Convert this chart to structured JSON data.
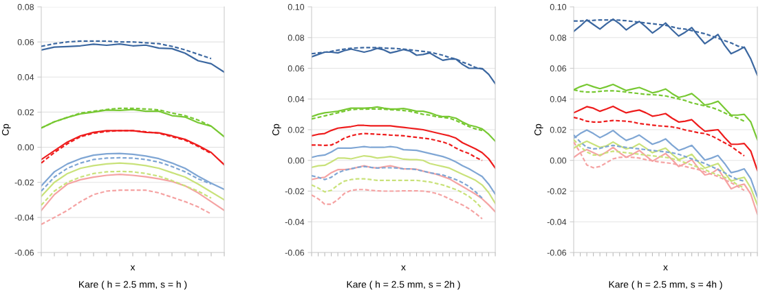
{
  "chart_data": [
    {
      "type": "line",
      "title": "Kare ( h = 2.5 mm, s = h )",
      "xlabel": "x",
      "ylabel": "Cp",
      "grid": "y",
      "categories": [
        null,
        null,
        null,
        null,
        null,
        null,
        null,
        null,
        null,
        null,
        null,
        null,
        null,
        null,
        null
      ],
      "ylim": [
        -0.06,
        0.08
      ],
      "yticks": [
        {
          "value": -0.06,
          "label": "-0.06"
        },
        {
          "value": -0.04,
          "label": "-0.04"
        },
        {
          "value": -0.02,
          "label": "-0.02"
        },
        {
          "value": 0,
          "label": "0.00"
        },
        {
          "value": 0.02,
          "label": "0.02"
        },
        {
          "value": 0.04,
          "label": "0.04"
        },
        {
          "value": 0.06,
          "label": "0.06"
        },
        {
          "value": 0.08,
          "label": "0.08"
        }
      ],
      "series": [
        {
          "color": "#3b67a0",
          "line_style": "solid",
          "values": [
            0.0554,
            0.0571,
            0.0574,
            0.0578,
            0.0587,
            0.0581,
            0.0588,
            0.0578,
            0.0582,
            0.0565,
            0.0562,
            0.0536,
            0.0493,
            0.0476,
            0.0428
          ]
        },
        {
          "color": "#3b67a0",
          "line_style": "dashed",
          "values": [
            0.0575,
            0.059,
            0.06,
            0.0605,
            0.0605,
            0.0605,
            0.06,
            0.06,
            0.0595,
            0.059,
            0.0575,
            0.0555,
            0.053,
            0.0505,
            null
          ]
        },
        {
          "color": "#77c832",
          "line_style": "solid",
          "values": [
            0.011,
            0.0145,
            0.017,
            0.019,
            0.02,
            0.0212,
            0.021,
            0.0215,
            0.0205,
            0.0205,
            0.018,
            0.0172,
            0.014,
            0.012,
            0.006
          ]
        },
        {
          "color": "#77c832",
          "line_style": "dashed",
          "values": [
            0.011,
            0.0145,
            0.017,
            0.0195,
            0.0205,
            0.0215,
            0.0222,
            0.0222,
            0.0218,
            0.0213,
            0.0195,
            0.018,
            0.0155,
            0.012,
            null
          ]
        },
        {
          "color": "#ee1c1c",
          "line_style": "solid",
          "values": [
            -0.007,
            -0.002,
            0.003,
            0.0065,
            0.0085,
            0.0095,
            0.0095,
            0.0095,
            0.0085,
            0.0082,
            0.0065,
            0.0045,
            0.001,
            -0.003,
            -0.01
          ]
        },
        {
          "color": "#ee1c1c",
          "line_style": "dashed",
          "values": [
            -0.009,
            -0.003,
            0.002,
            0.006,
            0.008,
            0.009,
            0.0095,
            0.0095,
            0.0088,
            0.008,
            0.006,
            0.004,
            0.0005,
            -0.0035,
            null
          ]
        },
        {
          "color": "#7fa6d4",
          "line_style": "solid",
          "values": [
            -0.022,
            -0.014,
            -0.0095,
            -0.0065,
            -0.0045,
            -0.0037,
            -0.0035,
            -0.004,
            -0.005,
            -0.0065,
            -0.009,
            -0.012,
            -0.0165,
            -0.0205,
            -0.024
          ]
        },
        {
          "color": "#7fa6d4",
          "line_style": "dashed",
          "values": [
            -0.025,
            -0.017,
            -0.012,
            -0.009,
            -0.007,
            -0.0062,
            -0.006,
            -0.0062,
            -0.007,
            -0.0085,
            -0.011,
            -0.014,
            -0.018,
            -0.021,
            null
          ]
        },
        {
          "color": "#c9e27a",
          "line_style": "solid",
          "values": [
            -0.028,
            -0.02,
            -0.015,
            -0.012,
            -0.0105,
            -0.0095,
            -0.009,
            -0.0095,
            -0.0105,
            -0.012,
            -0.0145,
            -0.017,
            -0.021,
            -0.0255,
            -0.03
          ]
        },
        {
          "color": "#c9e27a",
          "line_style": "dashed",
          "values": [
            -0.033,
            -0.025,
            -0.02,
            -0.017,
            -0.015,
            -0.014,
            -0.0138,
            -0.014,
            -0.015,
            -0.0165,
            -0.019,
            -0.022,
            -0.025,
            -0.029,
            null
          ]
        },
        {
          "color": "#f5a3a3",
          "line_style": "solid",
          "values": [
            -0.036,
            -0.027,
            -0.021,
            -0.0185,
            -0.017,
            -0.016,
            -0.0155,
            -0.016,
            -0.0168,
            -0.018,
            -0.0195,
            -0.022,
            -0.026,
            -0.031,
            -0.036
          ]
        },
        {
          "color": "#f5a3a3",
          "line_style": "dashed",
          "values": [
            -0.044,
            -0.04,
            -0.036,
            -0.031,
            -0.027,
            -0.025,
            -0.0245,
            -0.0245,
            -0.0245,
            -0.026,
            -0.0285,
            -0.031,
            -0.034,
            -0.038,
            null
          ]
        }
      ]
    },
    {
      "type": "line",
      "title": "Kare ( h = 2.5 mm, s = 2h )",
      "xlabel": "x",
      "ylabel": "Cp",
      "grid": "y",
      "categories": [
        null,
        null,
        null,
        null,
        null,
        null,
        null,
        null,
        null,
        null,
        null,
        null,
        null,
        null,
        null,
        null,
        null,
        null,
        null,
        null,
        null,
        null,
        null,
        null,
        null,
        null,
        null,
        null,
        null
      ],
      "ylim": [
        -0.06,
        0.1
      ],
      "yticks": [
        {
          "value": -0.06,
          "label": "-0.06"
        },
        {
          "value": -0.04,
          "label": "-0.04"
        },
        {
          "value": -0.02,
          "label": "-0.02"
        },
        {
          "value": 0,
          "label": "0.00"
        },
        {
          "value": 0.02,
          "label": "0.02"
        },
        {
          "value": 0.04,
          "label": "0.04"
        },
        {
          "value": 0.06,
          "label": "0.06"
        },
        {
          "value": 0.08,
          "label": "0.08"
        },
        {
          "value": 0.1,
          "label": "0.10"
        }
      ],
      "series": [
        {
          "color": "#3b67a0",
          "line_style": "solid",
          "values": [
            0.0675,
            0.069,
            0.0705,
            0.0705,
            0.07,
            0.0715,
            0.0725,
            0.0715,
            0.0705,
            0.0715,
            0.073,
            0.072,
            0.07,
            0.071,
            0.0722,
            0.0712,
            0.0685,
            0.069,
            0.07,
            0.0675,
            0.0652,
            0.066,
            0.066,
            0.0625,
            0.06,
            0.06,
            0.0598,
            0.056,
            0.05
          ]
        },
        {
          "color": "#3b67a0",
          "line_style": "dashed",
          "values": [
            0.0695,
            0.07,
            0.0705,
            0.071,
            0.0718,
            0.0725,
            0.073,
            0.0733,
            0.0735,
            0.0735,
            0.0735,
            0.0732,
            0.073,
            0.0728,
            0.0725,
            0.072,
            0.0715,
            0.071,
            0.0705,
            0.0695,
            0.0685,
            0.067,
            0.066,
            0.064,
            0.0625,
            0.0605,
            0.0595,
            null,
            null
          ]
        },
        {
          "color": "#77c832",
          "line_style": "solid",
          "values": [
            0.0285,
            0.03,
            0.031,
            0.0315,
            0.032,
            0.033,
            0.034,
            0.034,
            0.034,
            0.0342,
            0.0348,
            0.034,
            0.0335,
            0.0335,
            0.0338,
            0.033,
            0.032,
            0.032,
            0.031,
            0.0295,
            0.0285,
            0.0285,
            0.0275,
            0.025,
            0.023,
            0.022,
            0.0205,
            0.017,
            0.0125
          ]
        },
        {
          "color": "#77c832",
          "line_style": "dashed",
          "values": [
            0.027,
            0.028,
            0.029,
            0.03,
            0.031,
            0.032,
            0.033,
            0.0333,
            0.0333,
            0.0335,
            0.0335,
            0.0333,
            0.033,
            0.0328,
            0.0325,
            0.032,
            0.031,
            0.03,
            0.0295,
            0.0285,
            0.028,
            0.0275,
            0.026,
            0.024,
            0.022,
            0.0205,
            0.0195,
            null,
            null
          ]
        },
        {
          "color": "#ee1c1c",
          "line_style": "solid",
          "values": [
            0.016,
            0.017,
            0.0175,
            0.0195,
            0.021,
            0.0215,
            0.022,
            0.0228,
            0.0228,
            0.0225,
            0.0225,
            0.0225,
            0.0225,
            0.022,
            0.0215,
            0.021,
            0.0205,
            0.02,
            0.019,
            0.018,
            0.017,
            0.016,
            0.0145,
            0.0115,
            0.0095,
            0.0075,
            0.005,
            0.001,
            -0.005
          ]
        },
        {
          "color": "#ee1c1c",
          "line_style": "dashed",
          "values": [
            0.01,
            0.01,
            0.0098,
            0.01,
            0.012,
            0.0145,
            0.016,
            0.017,
            0.0175,
            0.0173,
            0.017,
            0.0168,
            0.0165,
            0.0163,
            0.016,
            0.0155,
            0.015,
            0.0145,
            0.014,
            0.013,
            0.012,
            0.0105,
            0.008,
            0.006,
            0.0045,
            0.002,
            0.0,
            null,
            null
          ]
        },
        {
          "color": "#7fa6d4",
          "line_style": "solid",
          "values": [
            0.002,
            0.003,
            0.0035,
            0.0055,
            0.008,
            0.008,
            0.008,
            0.0085,
            0.009,
            0.0085,
            0.0085,
            0.0085,
            0.009,
            0.0085,
            0.007,
            0.0068,
            0.0065,
            0.0055,
            0.0045,
            0.0035,
            0.0025,
            0.001,
            -0.001,
            -0.0035,
            -0.0055,
            -0.008,
            -0.0105,
            -0.0155,
            -0.022
          ]
        },
        {
          "color": "#7fa6d4",
          "line_style": "dashed",
          "values": [
            -0.01,
            -0.011,
            -0.0125,
            -0.011,
            -0.008,
            -0.0065,
            -0.0055,
            -0.0045,
            -0.004,
            -0.0045,
            -0.005,
            -0.0048,
            -0.0048,
            -0.005,
            -0.0055,
            -0.0055,
            -0.006,
            -0.007,
            -0.008,
            -0.0088,
            -0.0095,
            -0.011,
            -0.0125,
            -0.0145,
            -0.017,
            -0.0205,
            -0.0245,
            null,
            null
          ]
        },
        {
          "color": "#c9e27a",
          "line_style": "solid",
          "values": [
            -0.0045,
            -0.0035,
            -0.0032,
            -0.001,
            0.0015,
            0.0015,
            0.001,
            0.002,
            0.003,
            0.0025,
            0.0015,
            0.002,
            0.0025,
            0.0018,
            0.0008,
            0.0005,
            0.0005,
            0.0,
            -0.002,
            -0.003,
            -0.004,
            -0.005,
            -0.007,
            -0.009,
            -0.011,
            -0.013,
            -0.016,
            -0.021,
            -0.028
          ]
        },
        {
          "color": "#c9e27a",
          "line_style": "dashed",
          "values": [
            -0.016,
            -0.018,
            -0.0205,
            -0.0195,
            -0.016,
            -0.0135,
            -0.0125,
            -0.012,
            -0.012,
            -0.0125,
            -0.013,
            -0.013,
            -0.013,
            -0.013,
            -0.013,
            -0.013,
            -0.013,
            -0.0135,
            -0.014,
            -0.015,
            -0.016,
            -0.0175,
            -0.019,
            -0.021,
            -0.0235,
            -0.027,
            -0.0315,
            null,
            null
          ]
        },
        {
          "color": "#f5a3a3",
          "line_style": "solid",
          "values": [
            -0.0125,
            -0.0115,
            -0.011,
            -0.008,
            -0.006,
            -0.006,
            -0.0055,
            -0.0045,
            -0.0035,
            -0.0045,
            -0.005,
            -0.0042,
            -0.0035,
            -0.0045,
            -0.0055,
            -0.0055,
            -0.0058,
            -0.007,
            -0.008,
            -0.009,
            -0.0105,
            -0.012,
            -0.0145,
            -0.017,
            -0.0195,
            -0.022,
            -0.025,
            -0.029,
            -0.0335
          ]
        },
        {
          "color": "#f5a3a3",
          "line_style": "dashed",
          "values": [
            -0.0225,
            -0.025,
            -0.0285,
            -0.0285,
            -0.0255,
            -0.0215,
            -0.0195,
            -0.019,
            -0.019,
            -0.0195,
            -0.0198,
            -0.02,
            -0.02,
            -0.02,
            -0.0198,
            -0.0198,
            -0.0198,
            -0.02,
            -0.0205,
            -0.0215,
            -0.023,
            -0.025,
            -0.027,
            -0.029,
            -0.0315,
            -0.0345,
            -0.038,
            null,
            null
          ]
        }
      ]
    },
    {
      "type": "line",
      "title": "Kare ( h = 2.5 mm, s = 4h )",
      "xlabel": "x",
      "ylabel": "Cp",
      "grid": "y",
      "categories": [
        null,
        null,
        null,
        null,
        null,
        null,
        null,
        null,
        null,
        null,
        null,
        null,
        null,
        null,
        null,
        null,
        null,
        null,
        null,
        null,
        null,
        null,
        null,
        null,
        null,
        null,
        null,
        null,
        null
      ],
      "ylim": [
        -0.06,
        0.1
      ],
      "yticks": [
        {
          "value": -0.06,
          "label": "-0.06"
        },
        {
          "value": -0.04,
          "label": "-0.04"
        },
        {
          "value": -0.02,
          "label": "-0.02"
        },
        {
          "value": 0,
          "label": "0.00"
        },
        {
          "value": 0.02,
          "label": "0.02"
        },
        {
          "value": 0.04,
          "label": "0.04"
        },
        {
          "value": 0.06,
          "label": "0.06"
        },
        {
          "value": 0.08,
          "label": "0.08"
        },
        {
          "value": 0.1,
          "label": "0.10"
        }
      ],
      "series": [
        {
          "color": "#3b67a0",
          "line_style": "solid",
          "values": [
            0.084,
            0.0875,
            0.0915,
            0.0885,
            0.0855,
            0.089,
            0.092,
            0.089,
            0.085,
            0.088,
            0.0905,
            0.087,
            0.083,
            0.086,
            0.0895,
            0.085,
            0.081,
            0.0835,
            0.0865,
            0.081,
            0.076,
            0.079,
            0.082,
            0.075,
            0.0695,
            0.0715,
            0.0738,
            0.066,
            0.0555
          ]
        },
        {
          "color": "#3b67a0",
          "line_style": "dashed",
          "values": [
            0.0908,
            0.0908,
            0.091,
            0.0912,
            0.0915,
            0.0915,
            0.0915,
            0.0913,
            0.091,
            0.0905,
            0.09,
            0.0895,
            0.089,
            0.0885,
            0.088,
            0.087,
            0.086,
            0.0855,
            0.0845,
            0.0835,
            0.0825,
            0.081,
            0.0795,
            0.078,
            0.0765,
            0.0745,
            0.0735,
            null,
            null
          ]
        },
        {
          "color": "#77c832",
          "line_style": "solid",
          "values": [
            0.046,
            0.048,
            0.0495,
            0.048,
            0.0467,
            0.048,
            0.0495,
            0.0475,
            0.0455,
            0.0465,
            0.0475,
            0.0458,
            0.044,
            0.045,
            0.0465,
            0.0435,
            0.041,
            0.042,
            0.0435,
            0.04,
            0.036,
            0.037,
            0.0385,
            0.034,
            0.0295,
            0.0295,
            0.03,
            0.025,
            0.0135
          ]
        },
        {
          "color": "#77c832",
          "line_style": "dashed",
          "values": [
            0.046,
            0.045,
            0.0445,
            0.0445,
            0.045,
            0.0453,
            0.0453,
            0.045,
            0.0445,
            0.044,
            0.0435,
            0.043,
            0.0428,
            0.0425,
            0.042,
            0.041,
            0.04,
            0.039,
            0.0375,
            0.0365,
            0.0355,
            0.0345,
            0.033,
            0.031,
            0.029,
            0.0275,
            0.0255,
            null,
            null
          ]
        },
        {
          "color": "#ee1c1c",
          "line_style": "solid",
          "values": [
            0.031,
            0.033,
            0.035,
            0.034,
            0.032,
            0.0335,
            0.0352,
            0.033,
            0.031,
            0.032,
            0.0328,
            0.031,
            0.0288,
            0.0295,
            0.0305,
            0.0275,
            0.025,
            0.0255,
            0.0265,
            0.0225,
            0.019,
            0.0195,
            0.02,
            0.015,
            0.0105,
            0.0105,
            0.011,
            0.006,
            -0.0065
          ]
        },
        {
          "color": "#ee1c1c",
          "line_style": "dashed",
          "values": [
            0.028,
            0.027,
            0.0255,
            0.025,
            0.025,
            0.0255,
            0.026,
            0.0258,
            0.0255,
            0.025,
            0.024,
            0.0235,
            0.023,
            0.0225,
            0.0222,
            0.0218,
            0.021,
            0.0198,
            0.019,
            0.018,
            0.0175,
            0.016,
            0.0138,
            0.0115,
            0.0092,
            0.006,
            0.003,
            null,
            null
          ]
        },
        {
          "color": "#7fa6d4",
          "line_style": "solid",
          "values": [
            0.0145,
            0.0175,
            0.0198,
            0.0175,
            0.0148,
            0.017,
            0.0195,
            0.016,
            0.013,
            0.0145,
            0.0165,
            0.0135,
            0.0105,
            0.012,
            0.014,
            0.01,
            0.0065,
            0.008,
            0.0098,
            0.005,
            0.0002,
            0.0015,
            0.0032,
            -0.002,
            -0.008,
            -0.007,
            -0.0055,
            -0.012,
            -0.024
          ]
        },
        {
          "color": "#7fa6d4",
          "line_style": "dashed",
          "values": [
            0.0165,
            0.012,
            0.0085,
            0.0075,
            0.0078,
            0.009,
            0.0098,
            0.009,
            0.0085,
            0.008,
            0.0075,
            0.007,
            0.0065,
            0.006,
            0.0055,
            0.005,
            0.004,
            0.0025,
            0.001,
            -0.0005,
            -0.002,
            -0.004,
            -0.006,
            -0.008,
            -0.0105,
            -0.0125,
            -0.0135,
            null,
            null
          ]
        },
        {
          "color": "#c9e27a",
          "line_style": "solid",
          "values": [
            0.008,
            0.0105,
            0.0125,
            0.0105,
            0.0085,
            0.0095,
            0.012,
            0.0095,
            0.0075,
            0.0085,
            0.0108,
            0.008,
            0.005,
            0.0065,
            0.008,
            0.004,
            0.0005,
            0.002,
            0.004,
            -0.001,
            -0.005,
            -0.0035,
            -0.002,
            -0.008,
            -0.0135,
            -0.012,
            -0.011,
            -0.018,
            -0.029
          ]
        },
        {
          "color": "#c9e27a",
          "line_style": "dashed",
          "values": [
            0.0135,
            0.009,
            0.0055,
            0.0035,
            0.0035,
            0.005,
            0.006,
            0.0055,
            0.005,
            0.0045,
            0.004,
            0.0035,
            0.003,
            0.0025,
            0.002,
            0.0012,
            0.0,
            -0.0015,
            -0.003,
            -0.0045,
            -0.006,
            -0.008,
            -0.0095,
            -0.011,
            -0.013,
            -0.016,
            -0.018,
            null,
            null
          ]
        },
        {
          "color": "#f5a3a3",
          "line_style": "solid",
          "values": [
            0.002,
            0.005,
            0.007,
            0.005,
            0.003,
            0.0055,
            0.0085,
            0.005,
            0.002,
            0.004,
            0.0065,
            0.003,
            -0.0005,
            0.002,
            0.0045,
            0.0005,
            -0.004,
            -0.002,
            0.0005,
            -0.005,
            -0.0095,
            -0.0085,
            -0.0055,
            -0.012,
            -0.0185,
            -0.0165,
            -0.0155,
            -0.022,
            -0.035
          ]
        },
        {
          "color": "#f5a3a3",
          "line_style": "dashed",
          "values": [
            0.012,
            0.005,
            -0.003,
            -0.0048,
            -0.004,
            -0.0015,
            0.001,
            0.002,
            0.0022,
            0.002,
            0.0015,
            0.0005,
            -0.0002,
            -0.001,
            -0.0015,
            -0.002,
            -0.003,
            -0.004,
            -0.005,
            -0.006,
            -0.0075,
            -0.009,
            -0.0105,
            -0.0125,
            -0.0145,
            -0.017,
            -0.0195,
            null,
            null
          ]
        }
      ]
    }
  ]
}
